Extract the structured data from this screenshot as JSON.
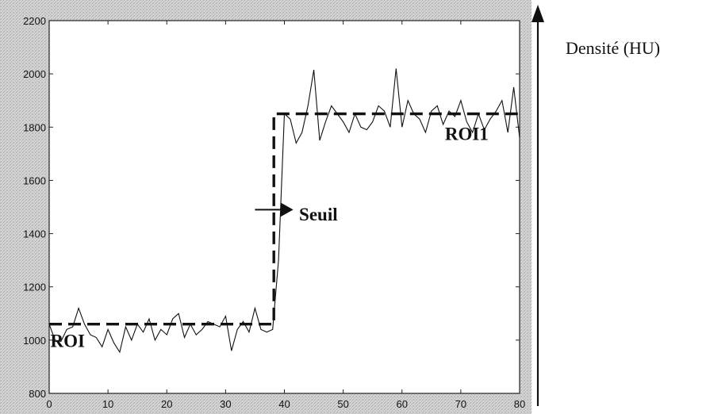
{
  "chart_data": {
    "type": "line",
    "title": "",
    "xlabel": "",
    "ylabel": "Densité (HU)",
    "xlim": [
      0,
      80
    ],
    "ylim": [
      800,
      2200
    ],
    "x_ticks": [
      "0",
      "10",
      "20",
      "30",
      "40",
      "50",
      "60",
      "70",
      "80"
    ],
    "y_ticks": [
      "800",
      "1000",
      "1200",
      "1400",
      "1600",
      "1800",
      "2000",
      "2200"
    ],
    "grid": false,
    "series": [
      {
        "style": "solid-thin",
        "x": [
          0,
          1,
          2,
          3,
          4,
          5,
          6,
          7,
          8,
          9,
          10,
          11,
          12,
          13,
          14,
          15,
          16,
          17,
          18,
          19,
          20,
          21,
          22,
          23,
          24,
          25,
          26,
          27,
          28,
          29,
          30,
          31,
          32,
          33,
          34,
          35,
          36,
          37,
          38,
          39,
          40,
          41,
          42,
          43,
          44,
          45,
          46,
          47,
          48,
          49,
          50,
          51,
          52,
          53,
          54,
          55,
          56,
          57,
          58,
          59,
          60,
          61,
          62,
          63,
          64,
          65,
          66,
          67,
          68,
          69,
          70,
          71,
          72,
          73,
          74,
          75,
          76,
          77,
          78,
          79,
          80
        ],
        "y": [
          1060,
          1000,
          995,
          1040,
          1050,
          1120,
          1060,
          1020,
          1010,
          975,
          1040,
          990,
          955,
          1050,
          1000,
          1060,
          1030,
          1080,
          1000,
          1040,
          1020,
          1080,
          1100,
          1010,
          1060,
          1020,
          1040,
          1070,
          1060,
          1050,
          1090,
          960,
          1040,
          1070,
          1030,
          1120,
          1040,
          1030,
          1040,
          1300,
          1850,
          1830,
          1740,
          1780,
          1880,
          2015,
          1750,
          1820,
          1880,
          1850,
          1820,
          1780,
          1850,
          1800,
          1790,
          1820,
          1880,
          1860,
          1800,
          2020,
          1800,
          1900,
          1850,
          1830,
          1780,
          1860,
          1880,
          1810,
          1860,
          1840,
          1900,
          1820,
          1780,
          1850,
          1790,
          1830,
          1860,
          1900,
          1780,
          1950,
          1760
        ]
      },
      {
        "style": "dashed-thick",
        "x": [
          0,
          38.2,
          38.2,
          80
        ],
        "y": [
          1060,
          1060,
          1850,
          1850
        ]
      }
    ],
    "annotations": [
      {
        "text": "ROI",
        "x": 0.2,
        "y": 975
      },
      {
        "text": "ROI1",
        "x": 67.3,
        "y": 1752
      },
      {
        "text": "Seuil",
        "x": 42.5,
        "y": 1450
      }
    ],
    "arrow": {
      "from_x": 35,
      "to_x": 41.5,
      "y": 1490
    }
  }
}
